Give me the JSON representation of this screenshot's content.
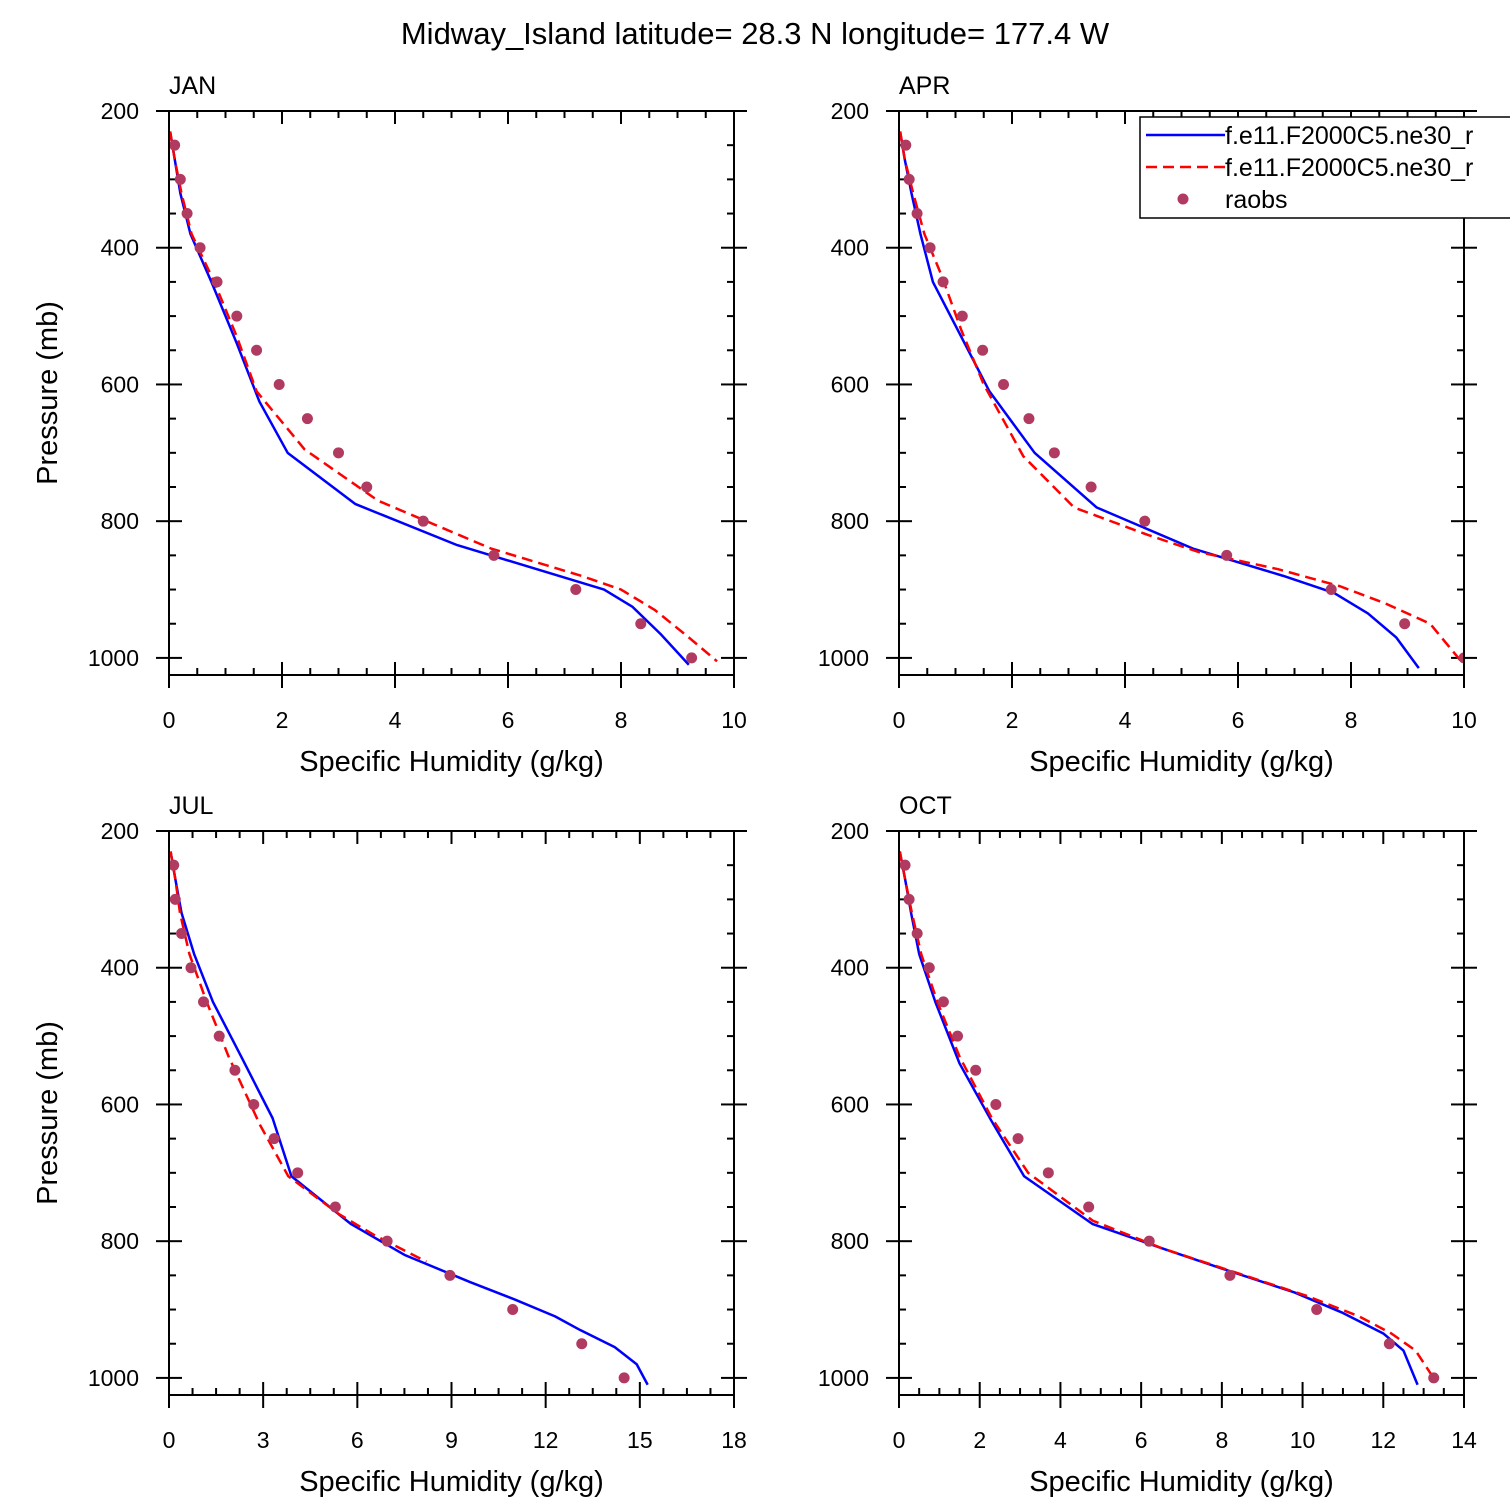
{
  "title": "Midway_Island  latitude= 28.3 N longitude= 177.4 W",
  "colors": {
    "model1": "#0000ff",
    "model2": "#ff0000",
    "raobs": "#b03a60",
    "axis": "#000000"
  },
  "legend": {
    "placement": "top-right of APR panel",
    "entries": [
      {
        "label": "f.e11.F2000C5.ne30_r",
        "style": "solid",
        "color": "#0000ff"
      },
      {
        "label": "f.e11.F2000C5.ne30_r",
        "style": "dashed",
        "color": "#ff0000"
      },
      {
        "label": "raobs",
        "style": "marker",
        "color": "#b03a60"
      }
    ]
  },
  "chart_data": [
    {
      "type": "line",
      "panel_title": "JAN",
      "xlabel": "Specific Humidity (g/kg)",
      "ylabel": "Pressure (mb)",
      "xlim": [
        0,
        10
      ],
      "ylim": [
        200,
        1025
      ],
      "y_inverted": true,
      "xticks": [
        0,
        2,
        4,
        6,
        8,
        10
      ],
      "xticklabels": [
        "0",
        "2",
        "4",
        "6",
        "8",
        "10"
      ],
      "yticks": [
        200,
        400,
        600,
        800,
        1000
      ],
      "yticklabels": [
        "200",
        "400",
        "600",
        "800",
        "1000"
      ],
      "series": [
        {
          "name": "f.e11.F2000C5.ne30_r (solid)",
          "style": "solid",
          "points": [
            [
              0.02,
              230
            ],
            [
              0.1,
              270
            ],
            [
              0.2,
              320
            ],
            [
              0.38,
              380
            ],
            [
              0.75,
              450
            ],
            [
              1.2,
              540
            ],
            [
              1.6,
              625
            ],
            [
              2.1,
              700
            ],
            [
              3.3,
              775
            ],
            [
              5.1,
              835
            ],
            [
              6.7,
              875
            ],
            [
              7.7,
              900
            ],
            [
              8.2,
              925
            ],
            [
              8.7,
              965
            ],
            [
              9.2,
              1010
            ]
          ]
        },
        {
          "name": "f.e11.F2000C5.ne30_r (dashed)",
          "style": "dashed",
          "points": [
            [
              0.02,
              230
            ],
            [
              0.1,
              270
            ],
            [
              0.22,
              320
            ],
            [
              0.4,
              380
            ],
            [
              0.8,
              450
            ],
            [
              1.2,
              530
            ],
            [
              1.55,
              610
            ],
            [
              2.4,
              695
            ],
            [
              3.7,
              770
            ],
            [
              5.7,
              840
            ],
            [
              7.3,
              880
            ],
            [
              8.0,
              900
            ],
            [
              8.6,
              930
            ],
            [
              9.2,
              970
            ],
            [
              9.7,
              1005
            ]
          ]
        },
        {
          "name": "raobs",
          "style": "marker",
          "points": [
            [
              0.1,
              250
            ],
            [
              0.2,
              300
            ],
            [
              0.32,
              350
            ],
            [
              0.55,
              400
            ],
            [
              0.85,
              450
            ],
            [
              1.2,
              500
            ],
            [
              1.55,
              550
            ],
            [
              1.95,
              600
            ],
            [
              2.45,
              650
            ],
            [
              3.0,
              700
            ],
            [
              3.5,
              750
            ],
            [
              4.5,
              800
            ],
            [
              5.75,
              850
            ],
            [
              7.2,
              900
            ],
            [
              8.35,
              950
            ],
            [
              9.25,
              1000
            ]
          ]
        }
      ]
    },
    {
      "type": "line",
      "panel_title": "APR",
      "xlabel": "Specific Humidity (g/kg)",
      "ylabel": "",
      "xlim": [
        0,
        10
      ],
      "ylim": [
        200,
        1025
      ],
      "y_inverted": true,
      "xticks": [
        0,
        2,
        4,
        6,
        8,
        10
      ],
      "xticklabels": [
        "0",
        "2",
        "4",
        "6",
        "8",
        "10"
      ],
      "yticks": [
        200,
        400,
        600,
        800,
        1000
      ],
      "yticklabels": [
        "200",
        "400",
        "600",
        "800",
        "1000"
      ],
      "series": [
        {
          "name": "f.e11.F2000C5.ne30_r (solid)",
          "style": "solid",
          "points": [
            [
              0.02,
              230
            ],
            [
              0.1,
              270
            ],
            [
              0.22,
              320
            ],
            [
              0.38,
              380
            ],
            [
              0.6,
              450
            ],
            [
              1.1,
              530
            ],
            [
              1.6,
              610
            ],
            [
              2.4,
              700
            ],
            [
              3.5,
              780
            ],
            [
              5.2,
              840
            ],
            [
              6.8,
              880
            ],
            [
              7.7,
              905
            ],
            [
              8.3,
              935
            ],
            [
              8.8,
              970
            ],
            [
              9.2,
              1015
            ]
          ]
        },
        {
          "name": "f.e11.F2000C5.ne30_r (dashed)",
          "style": "dashed",
          "points": [
            [
              0.02,
              230
            ],
            [
              0.1,
              270
            ],
            [
              0.25,
              320
            ],
            [
              0.45,
              380
            ],
            [
              0.75,
              440
            ],
            [
              1.1,
              520
            ],
            [
              1.5,
              600
            ],
            [
              2.2,
              705
            ],
            [
              3.1,
              780
            ],
            [
              4.4,
              820
            ],
            [
              5.3,
              845
            ],
            [
              6.7,
              870
            ],
            [
              7.8,
              895
            ],
            [
              8.6,
              920
            ],
            [
              9.4,
              950
            ],
            [
              10.0,
              1010
            ]
          ]
        },
        {
          "name": "raobs",
          "style": "marker",
          "points": [
            [
              0.12,
              250
            ],
            [
              0.18,
              300
            ],
            [
              0.32,
              350
            ],
            [
              0.55,
              400
            ],
            [
              0.78,
              450
            ],
            [
              1.12,
              500
            ],
            [
              1.48,
              550
            ],
            [
              1.85,
              600
            ],
            [
              2.3,
              650
            ],
            [
              2.75,
              700
            ],
            [
              3.4,
              750
            ],
            [
              4.35,
              800
            ],
            [
              5.8,
              850
            ],
            [
              7.65,
              900
            ],
            [
              8.95,
              950
            ],
            [
              10.0,
              1000
            ]
          ]
        }
      ]
    },
    {
      "type": "line",
      "panel_title": "JUL",
      "xlabel": "Specific Humidity (g/kg)",
      "ylabel": "Pressure (mb)",
      "xlim": [
        0,
        18
      ],
      "ylim": [
        200,
        1025
      ],
      "y_inverted": true,
      "xticks": [
        0,
        3,
        6,
        9,
        12,
        15,
        18
      ],
      "xticklabels": [
        "0",
        "3",
        "6",
        "9",
        "12",
        "15",
        "18"
      ],
      "yticks": [
        200,
        400,
        600,
        800,
        1000
      ],
      "yticklabels": [
        "200",
        "400",
        "600",
        "800",
        "1000"
      ],
      "series": [
        {
          "name": "f.e11.F2000C5.ne30_r (solid)",
          "style": "solid",
          "points": [
            [
              0.05,
              230
            ],
            [
              0.2,
              270
            ],
            [
              0.4,
              320
            ],
            [
              0.8,
              380
            ],
            [
              1.4,
              450
            ],
            [
              2.3,
              530
            ],
            [
              3.3,
              620
            ],
            [
              3.9,
              705
            ],
            [
              5.8,
              775
            ],
            [
              7.5,
              820
            ],
            [
              9.6,
              860
            ],
            [
              11.0,
              885
            ],
            [
              12.3,
              910
            ],
            [
              13.1,
              930
            ],
            [
              14.2,
              955
            ],
            [
              14.9,
              980
            ],
            [
              15.25,
              1010
            ]
          ]
        },
        {
          "name": "f.e11.F2000C5.ne30_r (dashed)",
          "style": "dashed",
          "points": [
            [
              0.05,
              230
            ],
            [
              0.2,
              270
            ],
            [
              0.35,
              320
            ],
            [
              0.65,
              380
            ],
            [
              1.2,
              450
            ],
            [
              1.9,
              530
            ],
            [
              2.9,
              630
            ],
            [
              3.8,
              705
            ],
            [
              5.4,
              760
            ],
            [
              6.5,
              790
            ],
            [
              8.2,
              830
            ]
          ]
        },
        {
          "name": "raobs",
          "style": "marker",
          "points": [
            [
              0.15,
              250
            ],
            [
              0.2,
              300
            ],
            [
              0.4,
              350
            ],
            [
              0.7,
              400
            ],
            [
              1.1,
              450
            ],
            [
              1.6,
              500
            ],
            [
              2.1,
              550
            ],
            [
              2.7,
              600
            ],
            [
              3.35,
              650
            ],
            [
              4.1,
              700
            ],
            [
              5.3,
              750
            ],
            [
              6.95,
              800
            ],
            [
              8.95,
              850
            ],
            [
              10.95,
              900
            ],
            [
              13.15,
              950
            ],
            [
              14.5,
              1000
            ]
          ]
        }
      ]
    },
    {
      "type": "line",
      "panel_title": "OCT",
      "xlabel": "Specific Humidity (g/kg)",
      "ylabel": "",
      "xlim": [
        0,
        14
      ],
      "ylim": [
        200,
        1025
      ],
      "y_inverted": true,
      "xticks": [
        0,
        2,
        4,
        6,
        8,
        10,
        12,
        14
      ],
      "xticklabels": [
        "0",
        "2",
        "4",
        "6",
        "8",
        "10",
        "12",
        "14"
      ],
      "yticks": [
        200,
        400,
        600,
        800,
        1000
      ],
      "yticklabels": [
        "200",
        "400",
        "600",
        "800",
        "1000"
      ],
      "series": [
        {
          "name": "f.e11.F2000C5.ne30_r (solid)",
          "style": "solid",
          "points": [
            [
              0.02,
              230
            ],
            [
              0.15,
              270
            ],
            [
              0.3,
              320
            ],
            [
              0.5,
              380
            ],
            [
              0.9,
              450
            ],
            [
              1.5,
              540
            ],
            [
              2.3,
              625
            ],
            [
              3.1,
              705
            ],
            [
              4.8,
              775
            ],
            [
              6.5,
              810
            ],
            [
              8.0,
              840
            ],
            [
              9.8,
              875
            ],
            [
              11.0,
              905
            ],
            [
              12.0,
              935
            ],
            [
              12.5,
              960
            ],
            [
              12.85,
              1010
            ]
          ]
        },
        {
          "name": "f.e11.F2000C5.ne30_r (dashed)",
          "style": "dashed",
          "points": [
            [
              0.02,
              230
            ],
            [
              0.15,
              270
            ],
            [
              0.32,
              320
            ],
            [
              0.55,
              380
            ],
            [
              0.95,
              450
            ],
            [
              1.5,
              530
            ],
            [
              2.3,
              620
            ],
            [
              3.2,
              700
            ],
            [
              4.8,
              770
            ],
            [
              6.5,
              810
            ],
            [
              8.3,
              845
            ],
            [
              10.1,
              880
            ],
            [
              11.4,
              910
            ],
            [
              12.2,
              935
            ],
            [
              12.8,
              960
            ],
            [
              13.3,
              1005
            ]
          ]
        },
        {
          "name": "raobs",
          "style": "marker",
          "points": [
            [
              0.15,
              250
            ],
            [
              0.25,
              300
            ],
            [
              0.45,
              350
            ],
            [
              0.75,
              400
            ],
            [
              1.1,
              450
            ],
            [
              1.45,
              500
            ],
            [
              1.9,
              550
            ],
            [
              2.4,
              600
            ],
            [
              2.95,
              650
            ],
            [
              3.7,
              700
            ],
            [
              4.7,
              750
            ],
            [
              6.2,
              800
            ],
            [
              8.2,
              850
            ],
            [
              10.35,
              900
            ],
            [
              12.15,
              950
            ],
            [
              13.25,
              1000
            ]
          ]
        }
      ]
    }
  ]
}
